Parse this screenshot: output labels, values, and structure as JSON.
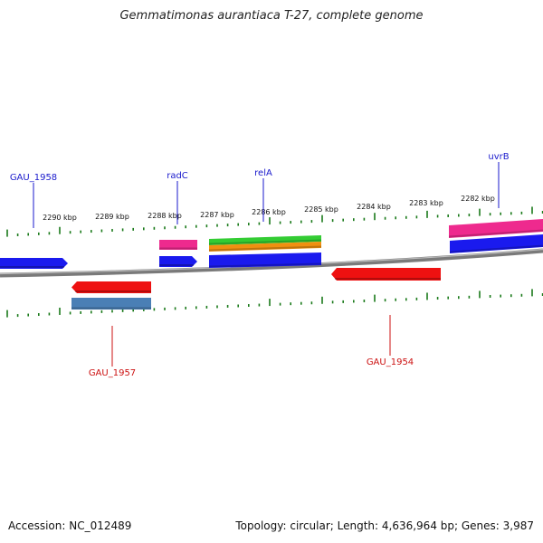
{
  "title": "Gemmatimonas aurantiaca T-27, complete genome",
  "accession": "Accession: NC_012489",
  "summary": "Topology: circular; Length: 4,636,964 bp; Genes: 3,987",
  "ticks": [
    {
      "label": "2290 kbp"
    },
    {
      "label": "2289 kbp"
    },
    {
      "label": "2288 kbp"
    },
    {
      "label": "2287 kbp"
    },
    {
      "label": "2286 kbp"
    },
    {
      "label": "2285 kbp"
    },
    {
      "label": "2284 kbp"
    },
    {
      "label": "2283 kbp"
    },
    {
      "label": "2282 kbp"
    }
  ],
  "genes": [
    {
      "name": "GAU_1958",
      "strand": "+",
      "color": "#1010dd"
    },
    {
      "name": "radC",
      "strand": "+",
      "color": "#1010dd"
    },
    {
      "name": "relA",
      "strand": "+",
      "color": "#1010dd"
    },
    {
      "name": "uvrB",
      "strand": "+",
      "color": "#1010dd"
    },
    {
      "name": "GAU_1957",
      "strand": "-",
      "color": "#ee1111"
    },
    {
      "name": "GAU_1954",
      "strand": "-",
      "color": "#ee1111"
    }
  ],
  "colors": {
    "forward_cds": "#1a1aee",
    "reverse_cds": "#ee1111",
    "pink_feature": "#ee2a8e",
    "green_feature": "#33cc33",
    "orange_feature": "#f09010",
    "steel_feature": "#4a7fb5",
    "backbone": "#888888",
    "ticks": "#1a7a1a",
    "forward_label": "#1a1acc",
    "reverse_label": "#cc1111"
  }
}
